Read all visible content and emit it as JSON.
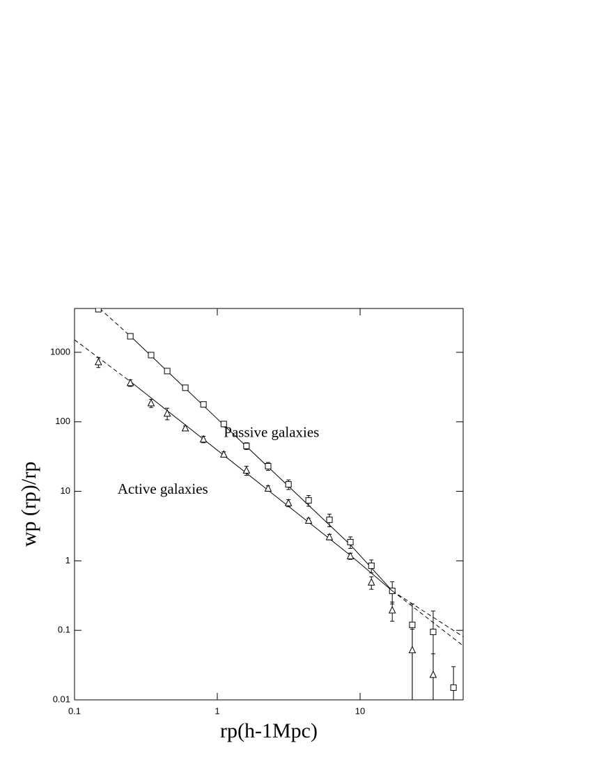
{
  "chart_data": {
    "type": "scatter",
    "x_label": "rp(h-1Mpc)",
    "y_label": "wp (rp)/rp",
    "log_x": true,
    "log_y": true,
    "xlim": [
      0.1,
      52.7
    ],
    "ylim": [
      0.01,
      4270
    ],
    "xticks": [
      0.1,
      1,
      10
    ],
    "yticks": [
      0.01,
      0.1,
      1,
      10,
      100,
      1000
    ],
    "annotations": [
      {
        "text": "Passive galaxies",
        "x": 1.11,
        "y": 68
      },
      {
        "text": "Active galaxies",
        "x": 0.2,
        "y": 10.3
      }
    ],
    "series": [
      {
        "name": "Passive galaxies",
        "marker": "square",
        "color": "#000",
        "x": [
          0.147,
          0.246,
          0.344,
          0.446,
          0.597,
          0.8,
          1.11,
          1.6,
          2.27,
          3.15,
          4.36,
          6.1,
          8.55,
          12.0,
          16.8,
          23.2,
          32.5,
          45.1
        ],
        "values": [
          4170,
          1700,
          912,
          537,
          309,
          178,
          93,
          45,
          23,
          12.6,
          7.4,
          3.9,
          1.86,
          0.85,
          0.37,
          0.12,
          0.095,
          0.015
        ],
        "errors": [
          300,
          120,
          70,
          40,
          25,
          15,
          8,
          5,
          3,
          2,
          1.3,
          0.8,
          0.35,
          0.18,
          0.13,
          0.12,
          0.095,
          0.015
        ],
        "fit": {
          "x": [
            0.15,
            0.25,
            1.11,
            4.36,
            8.55,
            16.8,
            52.7
          ],
          "y": [
            4270,
            1660,
            90,
            6.3,
            1.7,
            0.37,
            0.081
          ]
        }
      },
      {
        "name": "Active galaxies",
        "marker": "triangle",
        "color": "#000",
        "x": [
          0.147,
          0.246,
          0.344,
          0.446,
          0.597,
          0.8,
          1.11,
          1.6,
          2.27,
          3.15,
          4.36,
          6.1,
          8.55,
          12.0,
          16.8,
          23.2,
          32.5
        ],
        "values": [
          724,
          363,
          186,
          132,
          81,
          56,
          34,
          20,
          11,
          6.8,
          3.8,
          2.2,
          1.17,
          0.49,
          0.195,
          0.052,
          0.023
        ],
        "errors": [
          120,
          40,
          25,
          25,
          6,
          6,
          3,
          3,
          1,
          0.8,
          0.3,
          0.2,
          0.12,
          0.1,
          0.06,
          0.052,
          0.023
        ],
        "fit": {
          "x": [
            0.1,
            0.25,
            1.11,
            4.36,
            8.55,
            16.8,
            52.7
          ],
          "y": [
            1514,
            370,
            33,
            3.6,
            1.2,
            0.37,
            0.06
          ]
        }
      }
    ]
  }
}
